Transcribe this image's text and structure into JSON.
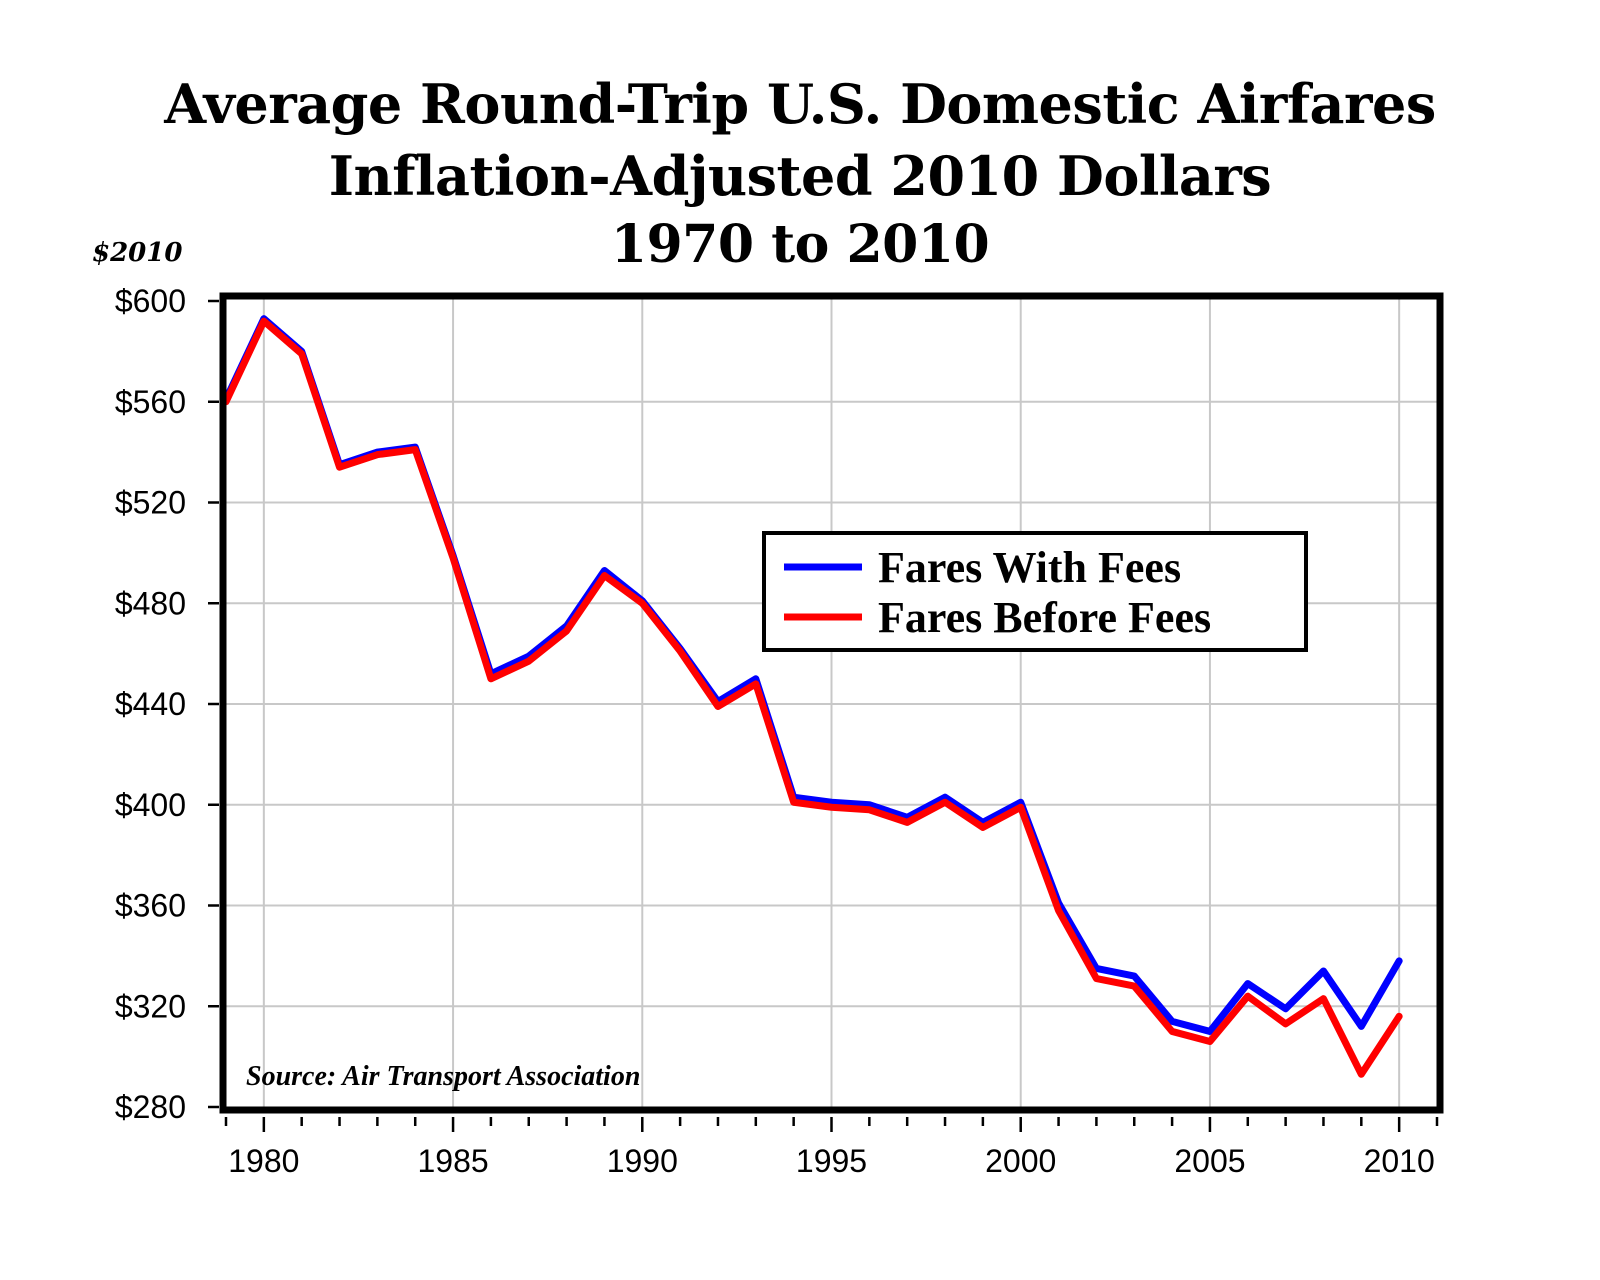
{
  "chart_data": {
    "type": "line",
    "title": "Average Round-Trip U.S. Domestic Airfares",
    "subtitle": "Inflation-Adjusted 2010 Dollars",
    "subtitle2": "1970 to 2010",
    "ylabel": "$2010",
    "xlabel": "",
    "xlim": [
      1979,
      2011
    ],
    "ylim": [
      280,
      600
    ],
    "grid": true,
    "legend_position": "center-right",
    "source": "Source: Air Transport Association",
    "y_ticks": [
      {
        "value": 280,
        "label": "$280"
      },
      {
        "value": 320,
        "label": "$320"
      },
      {
        "value": 360,
        "label": "$360"
      },
      {
        "value": 400,
        "label": "$400"
      },
      {
        "value": 440,
        "label": "$440"
      },
      {
        "value": 480,
        "label": "$480"
      },
      {
        "value": 520,
        "label": "$520"
      },
      {
        "value": 560,
        "label": "$560"
      },
      {
        "value": 600,
        "label": "$600"
      }
    ],
    "x_ticks": [
      {
        "value": 1980,
        "label": "1980"
      },
      {
        "value": 1985,
        "label": "1985"
      },
      {
        "value": 1990,
        "label": "1990"
      },
      {
        "value": 1995,
        "label": "1995"
      },
      {
        "value": 2000,
        "label": "2000"
      },
      {
        "value": 2005,
        "label": "2005"
      },
      {
        "value": 2010,
        "label": "2010"
      }
    ],
    "x": [
      1979,
      1980,
      1981,
      1982,
      1983,
      1984,
      1985,
      1986,
      1987,
      1988,
      1989,
      1990,
      1991,
      1992,
      1993,
      1994,
      1995,
      1996,
      1997,
      1998,
      1999,
      2000,
      2001,
      2002,
      2003,
      2004,
      2005,
      2006,
      2007,
      2008,
      2009,
      2010
    ],
    "series": [
      {
        "name": "Fares With Fees",
        "color": "#0000ff",
        "values": [
          561,
          593,
          580,
          535,
          540,
          542,
          499,
          452,
          459,
          471,
          493,
          481,
          462,
          441,
          450,
          403,
          401,
          400,
          395,
          403,
          393,
          401,
          361,
          335,
          332,
          314,
          310,
          329,
          319,
          334,
          312,
          338
        ]
      },
      {
        "name": "Fares Before Fees",
        "color": "#ff0000",
        "values": [
          560,
          592,
          579,
          534,
          539,
          541,
          498,
          450,
          457,
          469,
          491,
          480,
          461,
          439,
          448,
          401,
          399,
          398,
          393,
          401,
          391,
          399,
          358,
          331,
          328,
          310,
          306,
          324,
          313,
          323,
          293,
          316
        ]
      }
    ]
  }
}
